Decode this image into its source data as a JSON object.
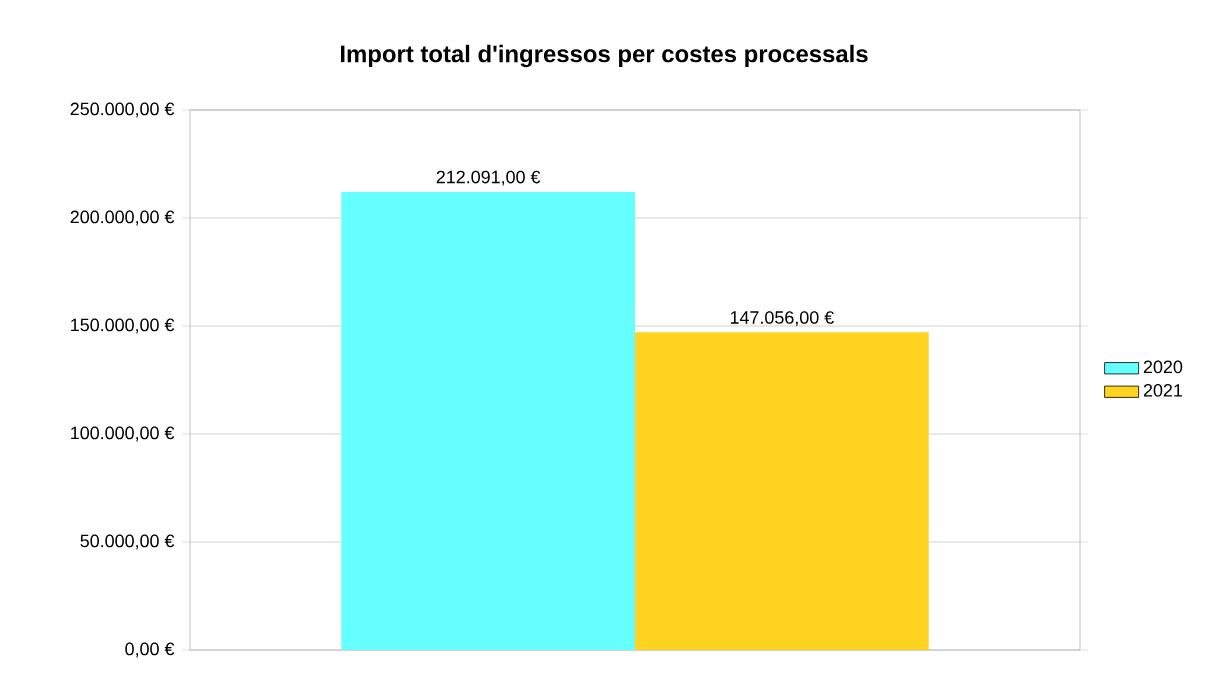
{
  "chart_data": {
    "type": "bar",
    "title": "Import total d'ingressos per costes processals",
    "categories": [
      null
    ],
    "series": [
      {
        "name": "2020",
        "color": "#66ffff",
        "values": [
          212091
        ],
        "value_labels": [
          "212.091,00 €"
        ]
      },
      {
        "name": "2021",
        "color": "#ffd320",
        "values": [
          147056
        ],
        "value_labels": [
          "147.056,00 €"
        ]
      }
    ],
    "ylim": [
      0,
      250000
    ],
    "yticks": [
      {
        "value": 0,
        "label": "0,00 €"
      },
      {
        "value": 50000,
        "label": "50.000,00 €"
      },
      {
        "value": 100000,
        "label": "100.000,00 €"
      },
      {
        "value": 150000,
        "label": "150.000,00 €"
      },
      {
        "value": 200000,
        "label": "200.000,00 €"
      },
      {
        "value": 250000,
        "label": "250.000,00 €"
      }
    ],
    "grid": "y",
    "legend": "right"
  }
}
